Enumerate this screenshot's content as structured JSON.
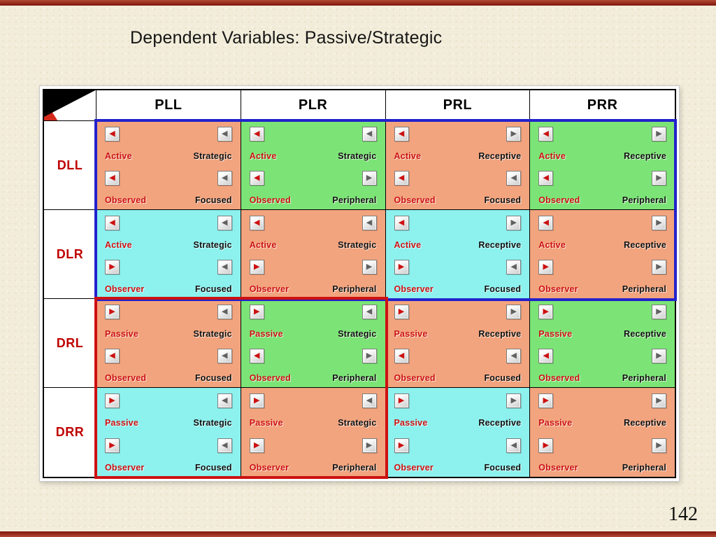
{
  "slide": {
    "title": "Dependent Variables: Passive/Strategic",
    "page_number": "142"
  },
  "colors": {
    "salmon": "#F2A47E",
    "green": "#7CE476",
    "cyan": "#8DF1EE",
    "label_red": "#CC1111",
    "label_black": "#101010",
    "row_header_red": "#C00000",
    "highlight_blue": "#2222CC",
    "highlight_red": "#CC1111",
    "slide_bg": "#F2EDDA",
    "edge_strip": "#7E150A"
  },
  "table": {
    "columns": [
      {
        "header": "PLL",
        "terms": [
          {
            "label": "Strategic",
            "arrow": "left"
          },
          {
            "label": "Focused",
            "arrow": "left"
          }
        ]
      },
      {
        "header": "PLR",
        "terms": [
          {
            "label": "Strategic",
            "arrow": "left"
          },
          {
            "label": "Peripheral",
            "arrow": "right"
          }
        ]
      },
      {
        "header": "PRL",
        "terms": [
          {
            "label": "Receptive",
            "arrow": "right"
          },
          {
            "label": "Focused",
            "arrow": "left"
          }
        ]
      },
      {
        "header": "PRR",
        "terms": [
          {
            "label": "Receptive",
            "arrow": "right"
          },
          {
            "label": "Peripheral",
            "arrow": "right"
          }
        ]
      }
    ],
    "rows": [
      {
        "header": "DLL",
        "terms": [
          {
            "label": "Active",
            "arrow": "left"
          },
          {
            "label": "Observed",
            "arrow": "left"
          }
        ],
        "cell_bgs": [
          "salmon",
          "green",
          "salmon",
          "green"
        ]
      },
      {
        "header": "DLR",
        "terms": [
          {
            "label": "Active",
            "arrow": "left"
          },
          {
            "label": "Observer",
            "arrow": "right"
          }
        ],
        "cell_bgs": [
          "cyan",
          "salmon",
          "cyan",
          "salmon"
        ]
      },
      {
        "header": "DRL",
        "terms": [
          {
            "label": "Passive",
            "arrow": "right"
          },
          {
            "label": "Observed",
            "arrow": "left"
          }
        ],
        "cell_bgs": [
          "salmon",
          "green",
          "salmon",
          "green"
        ]
      },
      {
        "header": "DRR",
        "terms": [
          {
            "label": "Passive",
            "arrow": "right"
          },
          {
            "label": "Observer",
            "arrow": "right"
          }
        ],
        "cell_bgs": [
          "cyan",
          "salmon",
          "cyan",
          "salmon"
        ]
      }
    ],
    "highlights": [
      {
        "name": "blue-box",
        "color": "#2222CC",
        "row_start": 0,
        "row_count": 2,
        "col_start": 0,
        "col_count": 4
      },
      {
        "name": "red-box",
        "color": "#CC1111",
        "row_start": 2,
        "row_count": 2,
        "col_start": 0,
        "col_count": 2
      }
    ]
  }
}
